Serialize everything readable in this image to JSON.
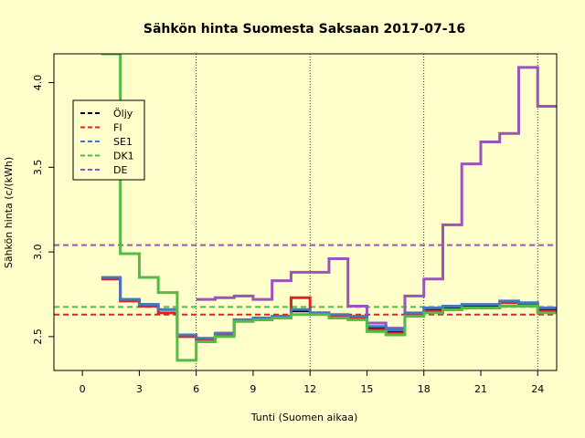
{
  "chart_data": {
    "type": "line",
    "title": "Sähkön hinta Suomesta Saksaan 2017-07-16",
    "xlabel": "Tunti (Suomen aikaa)",
    "ylabel": "Sähkön hinta (c/(kWh)",
    "xlim": [
      -1.5,
      25
    ],
    "ylim": [
      2.3,
      4.17
    ],
    "xticks": [
      0,
      3,
      6,
      9,
      12,
      15,
      18,
      21,
      24
    ],
    "yticks": [
      2.5,
      3.0,
      3.5,
      4.0
    ],
    "ytick_labels": [
      "2.5",
      "3.0",
      "3.5",
      "4.0"
    ],
    "vlines": [
      6,
      12,
      18,
      24
    ],
    "legend_position": "top-left",
    "series": [
      {
        "name": "Öljy",
        "color": "#000000",
        "style": "step",
        "x": [
          1,
          2,
          3,
          4,
          5,
          6,
          7,
          8,
          9,
          10,
          11,
          12,
          13,
          14,
          15,
          16,
          17,
          18,
          19,
          20,
          21,
          22,
          23,
          24,
          25
        ],
        "values": [
          2.85,
          2.72,
          2.69,
          2.66,
          2.51,
          2.49,
          2.52,
          2.6,
          2.61,
          2.62,
          2.65,
          2.64,
          2.63,
          2.62,
          2.55,
          2.53,
          2.64,
          2.66,
          2.67,
          2.68,
          2.68,
          2.7,
          2.7,
          2.66,
          2.66
        ]
      },
      {
        "name": "FI",
        "color": "#DD2222",
        "style": "step",
        "x": [
          1,
          2,
          3,
          4,
          5,
          6,
          7,
          8,
          9,
          10,
          11,
          12,
          13,
          14,
          15,
          16,
          17,
          18,
          19,
          20,
          21,
          22,
          23,
          24,
          25
        ],
        "values": [
          2.84,
          2.71,
          2.68,
          2.64,
          2.5,
          2.48,
          2.51,
          2.59,
          2.6,
          2.61,
          2.73,
          2.64,
          2.62,
          2.61,
          2.54,
          2.52,
          2.63,
          2.65,
          2.66,
          2.67,
          2.67,
          2.7,
          2.69,
          2.65,
          2.65
        ]
      },
      {
        "name": "SE1",
        "color": "#4477BB",
        "style": "step",
        "x": [
          1,
          2,
          3,
          4,
          5,
          6,
          7,
          8,
          9,
          10,
          11,
          12,
          13,
          14,
          15,
          16,
          17,
          18,
          19,
          20,
          21,
          22,
          23,
          24,
          25
        ],
        "values": [
          2.85,
          2.72,
          2.69,
          2.66,
          2.51,
          2.49,
          2.52,
          2.6,
          2.61,
          2.62,
          2.66,
          2.64,
          2.63,
          2.62,
          2.56,
          2.54,
          2.64,
          2.67,
          2.68,
          2.69,
          2.69,
          2.71,
          2.7,
          2.67,
          2.67
        ]
      },
      {
        "name": "DK1",
        "color": "#55BB44",
        "style": "step",
        "x": [
          1,
          2,
          3,
          4,
          5,
          6,
          7,
          8,
          9,
          10,
          11,
          12,
          13,
          14,
          15,
          16,
          17,
          18,
          19,
          20,
          21,
          22,
          23,
          24,
          25
        ],
        "values": [
          4.17,
          2.99,
          2.85,
          2.76,
          2.36,
          2.47,
          2.5,
          2.59,
          2.6,
          2.61,
          2.63,
          2.63,
          2.61,
          2.6,
          2.53,
          2.51,
          2.62,
          2.64,
          2.66,
          2.67,
          2.67,
          2.68,
          2.68,
          2.64,
          2.64
        ]
      },
      {
        "name": "DE",
        "color": "#9955BB",
        "style": "step",
        "x": [
          6,
          7,
          8,
          9,
          10,
          11,
          12,
          13,
          14,
          15,
          16,
          17,
          18,
          19,
          20,
          21,
          22,
          23,
          24,
          25
        ],
        "values": [
          2.72,
          2.73,
          2.74,
          2.72,
          2.83,
          2.88,
          2.88,
          2.96,
          2.68,
          2.58,
          2.55,
          2.74,
          2.84,
          3.16,
          3.52,
          3.65,
          3.7,
          4.09,
          3.86,
          3.86
        ]
      }
    ],
    "hlines": [
      {
        "name": "FI",
        "color": "#DD2222",
        "value": 2.63
      },
      {
        "name": "DK1",
        "color": "#55BB44",
        "value": 2.675
      },
      {
        "name": "DE",
        "color": "#9955BB",
        "value": 3.04
      }
    ],
    "legend": [
      {
        "name": "Öljy",
        "color": "#000000"
      },
      {
        "name": "FI",
        "color": "#DD2222"
      },
      {
        "name": "SE1",
        "color": "#4477BB"
      },
      {
        "name": "DK1",
        "color": "#55BB44"
      },
      {
        "name": "DE",
        "color": "#9955BB"
      }
    ]
  }
}
